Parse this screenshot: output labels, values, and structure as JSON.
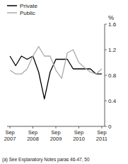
{
  "chart_data": {
    "type": "line",
    "ylabel": "%",
    "categories": [
      "Sep\n2007",
      null,
      null,
      null,
      "Sep\n2008",
      null,
      null,
      null,
      "Sep\n2009",
      null,
      null,
      null,
      "Sep\n2010",
      null,
      null,
      null,
      "Sep\n2011"
    ],
    "series": [
      {
        "name": "Private",
        "color": "#000000",
        "values": [
          1.1,
          0.95,
          1.1,
          1.05,
          1.1,
          0.85,
          0.43,
          0.85,
          1.05,
          1.05,
          1.05,
          0.9,
          0.9,
          0.9,
          0.9,
          0.82,
          0.82
        ]
      },
      {
        "name": "Public",
        "color": "#aaaaaa",
        "values": [
          0.88,
          0.82,
          0.82,
          0.9,
          1.1,
          1.25,
          1.1,
          1.1,
          0.88,
          0.75,
          1.15,
          1.2,
          1.0,
          0.92,
          0.85,
          0.82,
          0.9
        ]
      }
    ],
    "ylim": [
      0,
      1.6
    ],
    "yticks": [
      0,
      0.4,
      0.8,
      1.2,
      1.6
    ],
    "grid": false,
    "legend": "upper left",
    "annotations": [
      "(a) See Explanatory Notes paras 46-47, 50"
    ]
  }
}
